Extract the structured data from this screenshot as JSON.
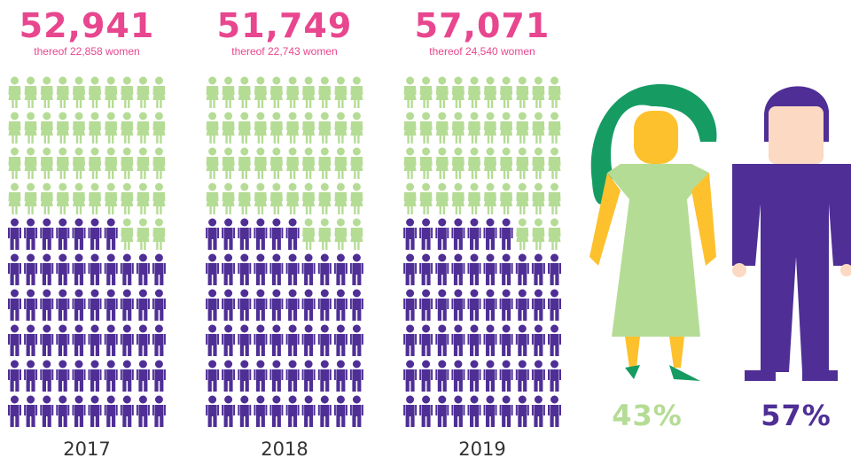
{
  "chart_data": {
    "type": "pictograph",
    "categories": [
      "2017",
      "2018",
      "2019"
    ],
    "totals": [
      "52,941",
      "51,749",
      "57,071"
    ],
    "subtitles": [
      "thereof 22,858 women",
      "thereof 22,743 women",
      "thereof 24,540 women"
    ],
    "series": [
      {
        "color": "#b5dc95",
        "values": [
          43,
          44,
          43
        ]
      },
      {
        "color": "#4f2f96",
        "values": [
          57,
          56,
          57
        ]
      }
    ],
    "share": {
      "values": [
        43,
        57
      ],
      "value_labels": [
        "43%",
        "57%"
      ],
      "colors": [
        "#b5dc95",
        "#4f2f96"
      ]
    },
    "title_color": "#e8468e"
  }
}
